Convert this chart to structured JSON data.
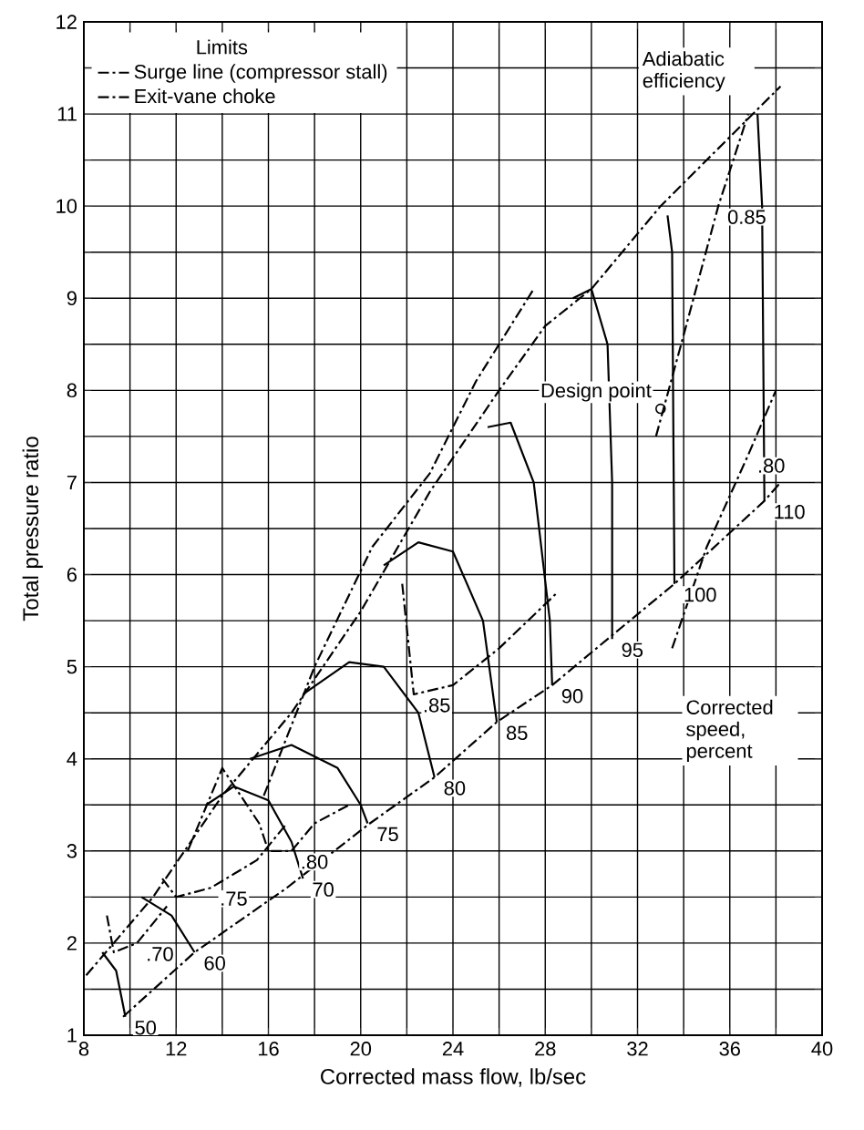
{
  "chart_data": {
    "type": "line",
    "xlabel": "Corrected mass flow, lb/sec",
    "ylabel": "Total pressure ratio",
    "legend_title": "Limits",
    "xlim": [
      8,
      40
    ],
    "ylim": [
      1,
      12
    ],
    "xticks": [
      8,
      {
        "value": 10,
        "label": null
      },
      12,
      {
        "value": 14,
        "label": null
      },
      16,
      {
        "value": 18,
        "label": null
      },
      20,
      {
        "value": 22,
        "label": null
      },
      24,
      {
        "value": 26,
        "label": null
      },
      28,
      {
        "value": 30,
        "label": null
      },
      32,
      {
        "value": 34,
        "label": null
      },
      36,
      {
        "value": 38,
        "label": null
      },
      40
    ],
    "yticks": [
      1,
      {
        "value": 1.5,
        "label": null
      },
      2,
      {
        "value": 2.5,
        "label": null
      },
      3,
      {
        "value": 3.5,
        "label": null
      },
      4,
      {
        "value": 4.5,
        "label": null
      },
      5,
      {
        "value": 5.5,
        "label": null
      },
      6,
      {
        "value": 6.5,
        "label": null
      },
      7,
      {
        "value": 7.5,
        "label": null
      },
      8,
      {
        "value": 8.5,
        "label": null
      },
      9,
      {
        "value": 9.5,
        "label": null
      },
      10,
      {
        "value": 10.5,
        "label": null
      },
      11,
      {
        "value": 11.5,
        "label": null
      },
      12
    ],
    "grid": true,
    "legend": "top left",
    "marker": "none",
    "series": [
      {
        "name": "Surge line (compressor stall)",
        "color": "#000000",
        "line_style": "dashed",
        "x": [
          8.1,
          11,
          14,
          17,
          20,
          23,
          26,
          28,
          30,
          33,
          38.2
        ],
        "values": [
          1.65,
          2.5,
          3.6,
          4.5,
          5.6,
          6.9,
          8.0,
          8.7,
          9.1,
          10.0,
          11.3
        ]
      },
      {
        "name": "Exit-vane choke",
        "color": "#000000",
        "line_style": "dashed",
        "x": [
          9.7,
          12.8,
          16.8,
          20.4,
          23.2,
          25.9,
          28.3,
          30.7,
          33.6,
          37.5,
          38.2
        ],
        "values": [
          1.2,
          1.9,
          2.6,
          3.3,
          3.8,
          4.4,
          4.8,
          5.3,
          5.9,
          6.8,
          7.0
        ]
      },
      {
        "color": "#000000",
        "line_style": "solid",
        "x": [
          8.8,
          9.4,
          9.8
        ],
        "values": [
          1.9,
          1.7,
          1.2
        ]
      },
      {
        "color": "#000000",
        "line_style": "solid",
        "x": [
          10.5,
          11.8,
          12.8
        ],
        "values": [
          2.5,
          2.3,
          1.9
        ]
      },
      {
        "color": "#000000",
        "line_style": "solid",
        "x": [
          13.3,
          14.5,
          16,
          17,
          17.5
        ],
        "values": [
          3.5,
          3.7,
          3.55,
          3.1,
          2.7
        ]
      },
      {
        "color": "#000000",
        "line_style": "solid",
        "x": [
          15.2,
          17,
          19,
          20,
          20.3
        ],
        "values": [
          4.0,
          4.15,
          3.9,
          3.5,
          3.3
        ]
      },
      {
        "color": "#000000",
        "line_style": "solid",
        "x": [
          17.5,
          19.5,
          21,
          22.5,
          23.2
        ],
        "values": [
          4.7,
          5.05,
          5.0,
          4.5,
          3.8
        ]
      },
      {
        "color": "#000000",
        "line_style": "solid",
        "x": [
          21,
          22.5,
          24,
          25.3,
          25.9
        ],
        "values": [
          6.1,
          6.35,
          6.25,
          5.5,
          4.4
        ]
      },
      {
        "color": "#000000",
        "line_style": "solid",
        "x": [
          25.5,
          26.5,
          27.5,
          28.2,
          28.3
        ],
        "values": [
          7.6,
          7.65,
          7.0,
          5.5,
          4.8
        ]
      },
      {
        "color": "#000000",
        "line_style": "solid",
        "x": [
          29.2,
          30,
          30.7,
          30.9,
          30.9
        ],
        "values": [
          9.0,
          9.1,
          8.5,
          7.0,
          5.3
        ]
      },
      {
        "color": "#000000",
        "line_style": "solid",
        "x": [
          33.3,
          33.5,
          33.6
        ],
        "values": [
          9.9,
          9.5,
          5.9
        ]
      },
      {
        "color": "#000000",
        "line_style": "solid",
        "x": [
          37.2,
          37.4,
          37.5
        ],
        "values": [
          11.0,
          10.0,
          6.8
        ]
      },
      {
        "color": "#000000",
        "line_style": "dashed",
        "x": [
          9.0,
          9.3,
          10.3,
          11.6
        ],
        "values": [
          2.3,
          1.9,
          2.0,
          2.4
        ]
      },
      {
        "color": "#000000",
        "line_style": "dashed",
        "x": [
          11.4,
          12,
          13.5,
          15.5,
          16.8
        ],
        "values": [
          2.7,
          2.5,
          2.6,
          2.9,
          3.3
        ]
      },
      {
        "color": "#000000",
        "line_style": "dashed",
        "x": [
          12.5,
          14,
          15.6,
          16,
          17,
          18,
          19.5
        ],
        "values": [
          3.0,
          3.9,
          3.3,
          3.0,
          3.0,
          3.3,
          3.5
        ]
      },
      {
        "color": "#000000",
        "line_style": "dashed",
        "x": [
          15.8,
          18,
          20.5,
          23,
          25,
          27.5
        ],
        "values": [
          3.6,
          5.0,
          6.3,
          7.1,
          8.1,
          9.1
        ]
      },
      {
        "color": "#000000",
        "line_style": "dashed",
        "x": [
          21.8,
          22.3,
          24,
          26,
          28.5
        ],
        "values": [
          5.9,
          4.7,
          4.8,
          5.2,
          5.8
        ]
      },
      {
        "color": "#000000",
        "line_style": "dashed",
        "x": [
          32.8,
          34,
          35.5,
          36.8
        ],
        "values": [
          7.5,
          8.6,
          10.0,
          11.0
        ]
      },
      {
        "color": "#000000",
        "line_style": "dashed",
        "x": [
          33.5,
          35,
          36.8,
          38
        ],
        "values": [
          5.2,
          6.3,
          7.3,
          8.0
        ]
      },
      {
        "color": "#000000",
        "type": "scatter",
        "marker": "circle",
        "x": [
          33.0
        ],
        "values": [
          7.8
        ]
      }
    ],
    "annotations": [
      {
        "text": "50",
        "x": 9.8,
        "y": 1.2
      },
      {
        "text": "60",
        "x": 12.8,
        "y": 1.9
      },
      {
        "text": "70",
        "x": 17.5,
        "y": 2.7
      },
      {
        "text": "75",
        "x": 20.3,
        "y": 3.3
      },
      {
        "text": "80",
        "x": 23.2,
        "y": 3.8
      },
      {
        "text": "85",
        "x": 25.9,
        "y": 4.4
      },
      {
        "text": "90",
        "x": 28.3,
        "y": 4.8
      },
      {
        "text": "95",
        "x": 30.9,
        "y": 5.3
      },
      {
        "text": "100",
        "x": 33.6,
        "y": 5.9
      },
      {
        "text": "110",
        "x": 37.5,
        "y": 6.8
      },
      {
        "text": ".70",
        "x": 10.3,
        "y": 2.0
      },
      {
        "text": ".75",
        "x": 13.5,
        "y": 2.6
      },
      {
        "text": ".80",
        "x": 17,
        "y": 3.0
      },
      {
        "text": ".85",
        "x": 22.3,
        "y": 4.7
      },
      {
        "text": ".80",
        "x": 36.8,
        "y": 7.3
      },
      {
        "text": "0.85",
        "x": 35.5,
        "y": 10.0
      },
      {
        "text": "Design point",
        "x": 33.0,
        "y": 7.8
      },
      "Adiabatic efficiency",
      "Corrected speed, percent"
    ]
  }
}
